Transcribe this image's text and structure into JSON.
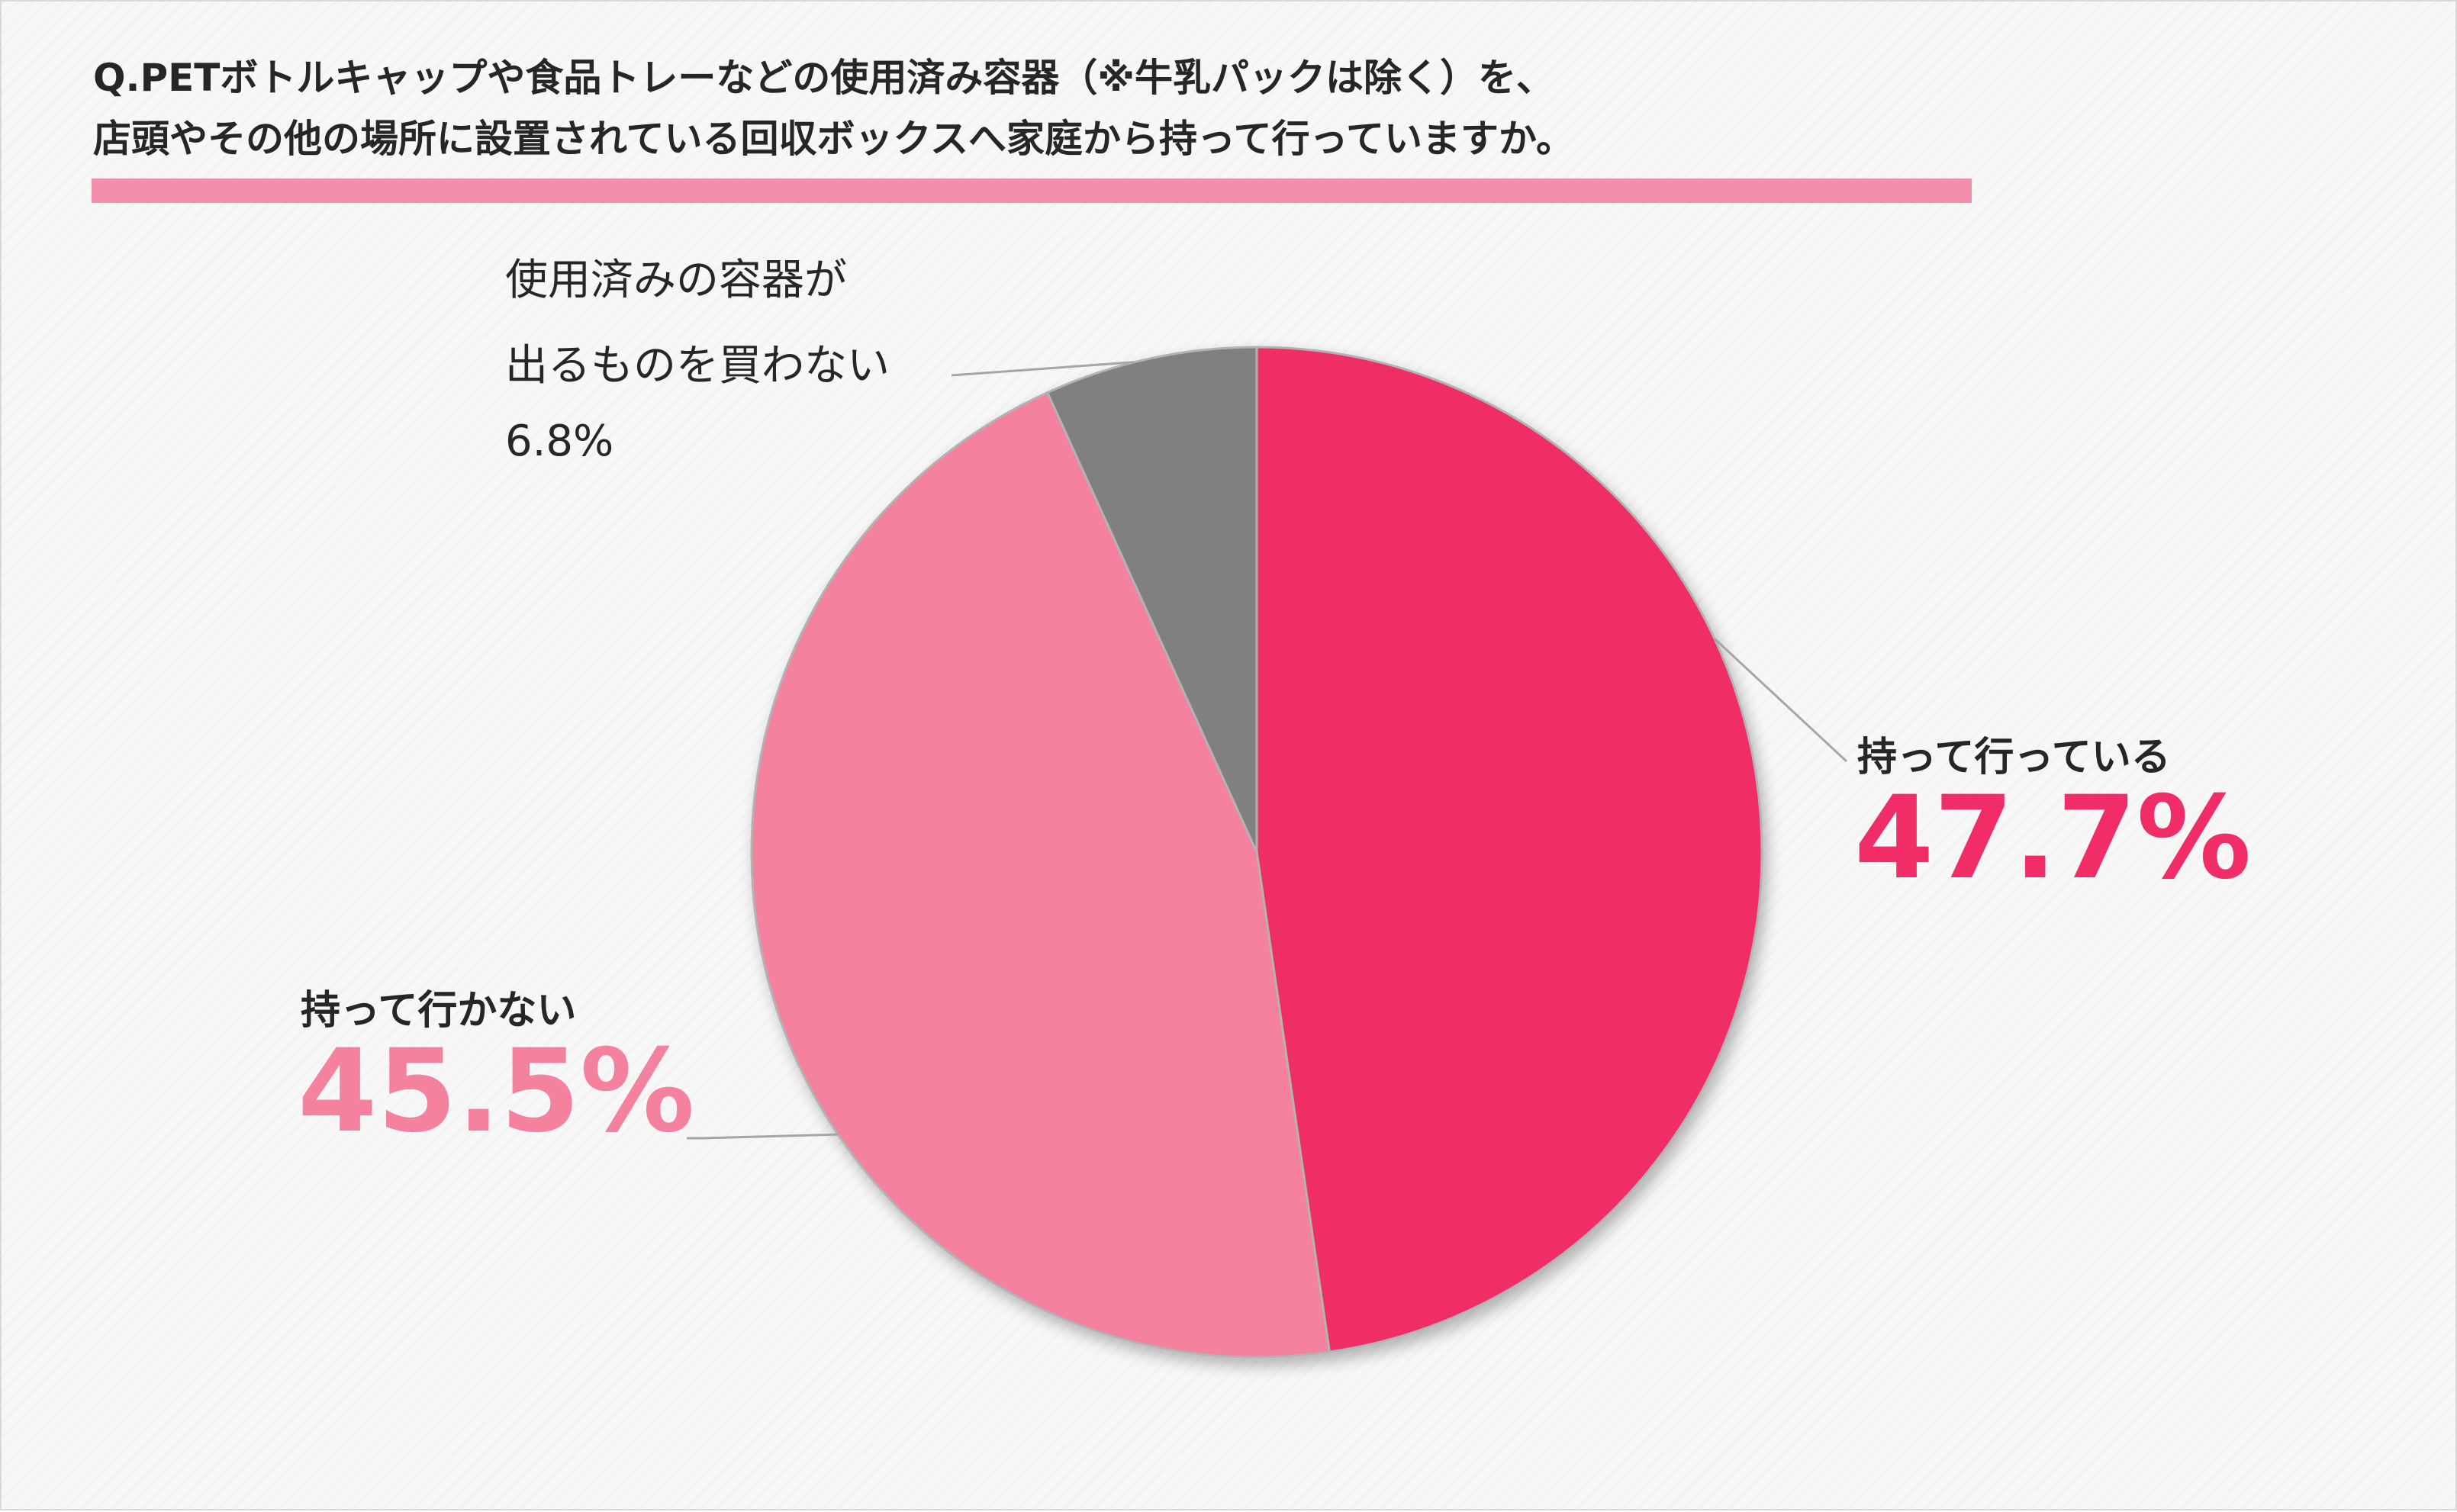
{
  "title": {
    "line1": "Q.PETボトルキャップや食品トレーなどの使用済み容器（※牛乳パックは除く）を、",
    "line2": "店頭やその他の場所に設置されている回収ボックスへ家庭から持って行っていますか。"
  },
  "chart_data": {
    "type": "pie",
    "slices": [
      {
        "label": "持って行っている",
        "value": 47.7,
        "value_text": "47.7%",
        "color": "#f02d66"
      },
      {
        "label": "持って行かない",
        "value": 45.5,
        "value_text": "45.5%",
        "color": "#f4829e"
      },
      {
        "label_lines": [
          "使用済みの容器が",
          "出るものを買わない"
        ],
        "value": 6.8,
        "value_text": "6.8%",
        "color": "#808080"
      }
    ],
    "start": "12 o'clock",
    "direction": "clockwise",
    "legend": "none",
    "data_labels": "outside with leader lines"
  },
  "colors": {
    "title_underline": "#f38fab",
    "slice_border": "#b3b3b3",
    "leader_line": "#a6a6a6"
  }
}
